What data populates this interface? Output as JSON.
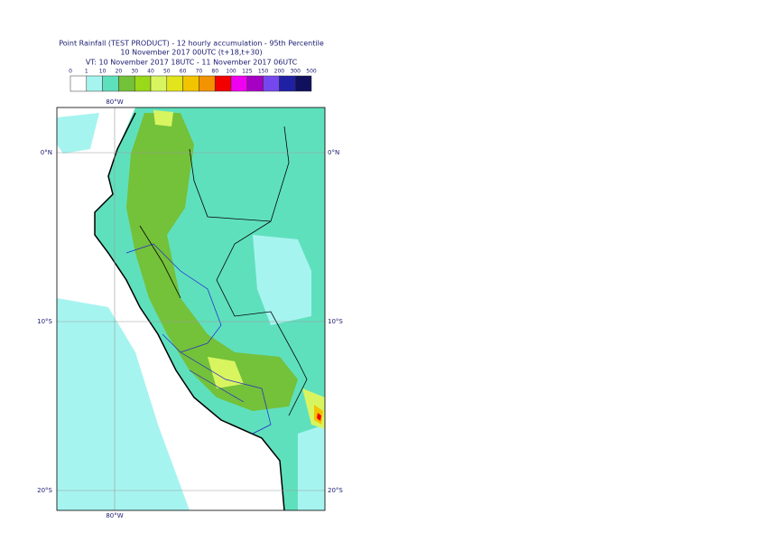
{
  "header": {
    "title": "Point Rainfall (TEST PRODUCT) - 12 hourly accumulation - 95th Percentile",
    "base_time": "10 November 2017 00UTC (t+18,t+30)",
    "valid_time": "VT: 10 November 2017 18UTC - 11 November 2017 06UTC"
  },
  "legend": {
    "labels": [
      0,
      1,
      10,
      20,
      30,
      40,
      50,
      60,
      70,
      80,
      100,
      125,
      150,
      200,
      300,
      500
    ],
    "colors": [
      "#ffffff",
      "#a6f4f0",
      "#5fe0bd",
      "#74c13a",
      "#9ad81a",
      "#d8f560",
      "#e2e41c",
      "#f2c400",
      "#f39300",
      "#f20000",
      "#f000f0",
      "#a600c4",
      "#7448ee",
      "#2020a4",
      "#10105e"
    ]
  },
  "map": {
    "lon_label": "80°W",
    "lat_labels": [
      "0°N",
      "10°S",
      "20°S"
    ]
  }
}
